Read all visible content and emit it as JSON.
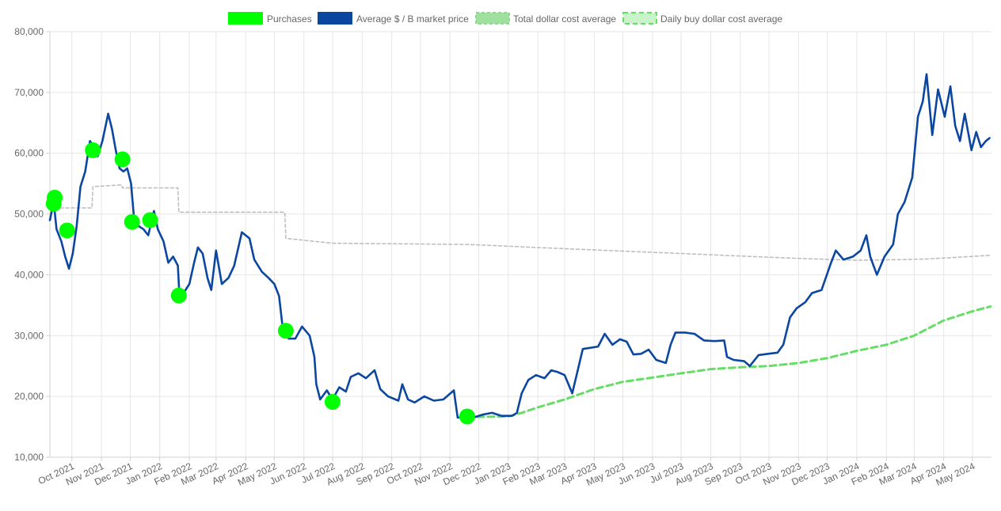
{
  "chart_data": {
    "type": "line",
    "x_axis_type": "date",
    "y_axis": {
      "ylim": [
        10000,
        80000
      ],
      "ticks": [
        10000,
        20000,
        30000,
        40000,
        50000,
        60000,
        70000,
        80000
      ],
      "tick_labels": [
        "10,000",
        "20,000",
        "30,000",
        "40,000",
        "50,000",
        "60,000",
        "70,000",
        "80,000"
      ]
    },
    "x_axis": {
      "xlim": [
        "2021-09-08",
        "2024-05-21"
      ],
      "ticks": [
        "2021-10-01",
        "2021-11-01",
        "2021-12-01",
        "2022-01-01",
        "2022-02-01",
        "2022-03-01",
        "2022-04-01",
        "2022-05-01",
        "2022-06-01",
        "2022-07-01",
        "2022-08-01",
        "2022-09-01",
        "2022-10-01",
        "2022-11-01",
        "2022-12-01",
        "2023-01-01",
        "2023-02-01",
        "2023-03-01",
        "2023-04-01",
        "2023-05-01",
        "2023-06-01",
        "2023-07-01",
        "2023-08-01",
        "2023-09-01",
        "2023-10-01",
        "2023-11-01",
        "2023-12-01",
        "2024-01-01",
        "2024-02-01",
        "2024-03-01",
        "2024-04-01",
        "2024-05-01"
      ],
      "tick_labels": [
        "Oct 2021",
        "Nov 2021",
        "Dec 2021",
        "Jan 2022",
        "Feb 2022",
        "Mar 2022",
        "Apr 2022",
        "May 2022",
        "Jun 2022",
        "Jul 2022",
        "Aug 2022",
        "Sep 2022",
        "Oct 2022",
        "Nov 2022",
        "Dec 2022",
        "Jan 2023",
        "Feb 2023",
        "Mar 2023",
        "Apr 2023",
        "May 2023",
        "Jun 2023",
        "Jul 2023",
        "Aug 2023",
        "Sep 2023",
        "Oct 2023",
        "Nov 2023",
        "Dec 2023",
        "Jan 2024",
        "Feb 2024",
        "Mar 2024",
        "Apr 2024",
        "May 2024"
      ]
    },
    "grid": true,
    "legend_position": "top-center",
    "series": [
      {
        "name": "Purchases",
        "kind": "points",
        "color": "#00ff00",
        "points": [
          {
            "x": "2021-09-13",
            "y": 52700
          },
          {
            "x": "2021-09-12",
            "y": 51700
          },
          {
            "x": "2021-09-26",
            "y": 47300
          },
          {
            "x": "2021-10-23",
            "y": 60500
          },
          {
            "x": "2021-11-23",
            "y": 59000
          },
          {
            "x": "2021-12-03",
            "y": 48700
          },
          {
            "x": "2021-12-22",
            "y": 49000
          },
          {
            "x": "2022-01-21",
            "y": 36600
          },
          {
            "x": "2022-05-13",
            "y": 30800
          },
          {
            "x": "2022-07-01",
            "y": 19100
          },
          {
            "x": "2022-11-19",
            "y": 16700
          }
        ]
      },
      {
        "name": "Average $ / B market price",
        "kind": "line",
        "color": "#0b47a1",
        "points": [
          {
            "x": "2021-09-08",
            "y": 49000
          },
          {
            "x": "2021-09-12",
            "y": 52000
          },
          {
            "x": "2021-09-15",
            "y": 47500
          },
          {
            "x": "2021-09-20",
            "y": 45500
          },
          {
            "x": "2021-09-24",
            "y": 43000
          },
          {
            "x": "2021-09-28",
            "y": 41000
          },
          {
            "x": "2021-10-02",
            "y": 43500
          },
          {
            "x": "2021-10-06",
            "y": 48000
          },
          {
            "x": "2021-10-10",
            "y": 54500
          },
          {
            "x": "2021-10-15",
            "y": 57000
          },
          {
            "x": "2021-10-20",
            "y": 62000
          },
          {
            "x": "2021-10-24",
            "y": 61000
          },
          {
            "x": "2021-10-28",
            "y": 59500
          },
          {
            "x": "2021-11-02",
            "y": 62000
          },
          {
            "x": "2021-11-08",
            "y": 66500
          },
          {
            "x": "2021-11-12",
            "y": 64000
          },
          {
            "x": "2021-11-16",
            "y": 60500
          },
          {
            "x": "2021-11-20",
            "y": 57500
          },
          {
            "x": "2021-11-24",
            "y": 57000
          },
          {
            "x": "2021-11-28",
            "y": 57500
          },
          {
            "x": "2021-12-02",
            "y": 55000
          },
          {
            "x": "2021-12-05",
            "y": 49500
          },
          {
            "x": "2021-12-10",
            "y": 48000
          },
          {
            "x": "2021-12-15",
            "y": 47500
          },
          {
            "x": "2021-12-20",
            "y": 46500
          },
          {
            "x": "2021-12-26",
            "y": 50500
          },
          {
            "x": "2021-12-30",
            "y": 47500
          },
          {
            "x": "2022-01-05",
            "y": 45500
          },
          {
            "x": "2022-01-10",
            "y": 42000
          },
          {
            "x": "2022-01-15",
            "y": 43000
          },
          {
            "x": "2022-01-20",
            "y": 41500
          },
          {
            "x": "2022-01-22",
            "y": 35500
          },
          {
            "x": "2022-01-26",
            "y": 37000
          },
          {
            "x": "2022-02-01",
            "y": 38500
          },
          {
            "x": "2022-02-06",
            "y": 42000
          },
          {
            "x": "2022-02-10",
            "y": 44500
          },
          {
            "x": "2022-02-15",
            "y": 43500
          },
          {
            "x": "2022-02-20",
            "y": 39500
          },
          {
            "x": "2022-02-24",
            "y": 37500
          },
          {
            "x": "2022-03-01",
            "y": 44000
          },
          {
            "x": "2022-03-07",
            "y": 38500
          },
          {
            "x": "2022-03-14",
            "y": 39500
          },
          {
            "x": "2022-03-20",
            "y": 41500
          },
          {
            "x": "2022-03-28",
            "y": 47000
          },
          {
            "x": "2022-04-05",
            "y": 46000
          },
          {
            "x": "2022-04-10",
            "y": 42500
          },
          {
            "x": "2022-04-18",
            "y": 40500
          },
          {
            "x": "2022-04-25",
            "y": 39500
          },
          {
            "x": "2022-05-01",
            "y": 38500
          },
          {
            "x": "2022-05-06",
            "y": 36500
          },
          {
            "x": "2022-05-10",
            "y": 31000
          },
          {
            "x": "2022-05-16",
            "y": 29500
          },
          {
            "x": "2022-05-23",
            "y": 29500
          },
          {
            "x": "2022-05-30",
            "y": 31500
          },
          {
            "x": "2022-06-07",
            "y": 30000
          },
          {
            "x": "2022-06-12",
            "y": 26500
          },
          {
            "x": "2022-06-14",
            "y": 22000
          },
          {
            "x": "2022-06-18",
            "y": 19500
          },
          {
            "x": "2022-06-25",
            "y": 21000
          },
          {
            "x": "2022-07-01",
            "y": 19500
          },
          {
            "x": "2022-07-08",
            "y": 21500
          },
          {
            "x": "2022-07-15",
            "y": 20800
          },
          {
            "x": "2022-07-20",
            "y": 23200
          },
          {
            "x": "2022-07-28",
            "y": 23800
          },
          {
            "x": "2022-08-05",
            "y": 23000
          },
          {
            "x": "2022-08-14",
            "y": 24300
          },
          {
            "x": "2022-08-20",
            "y": 21200
          },
          {
            "x": "2022-08-28",
            "y": 20000
          },
          {
            "x": "2022-09-08",
            "y": 19300
          },
          {
            "x": "2022-09-12",
            "y": 22000
          },
          {
            "x": "2022-09-18",
            "y": 19500
          },
          {
            "x": "2022-09-25",
            "y": 19000
          },
          {
            "x": "2022-10-05",
            "y": 20000
          },
          {
            "x": "2022-10-15",
            "y": 19300
          },
          {
            "x": "2022-10-25",
            "y": 19500
          },
          {
            "x": "2022-11-05",
            "y": 21000
          },
          {
            "x": "2022-11-09",
            "y": 16500
          },
          {
            "x": "2022-11-15",
            "y": 16600
          },
          {
            "x": "2022-11-25",
            "y": 16500
          },
          {
            "x": "2022-12-05",
            "y": 17000
          },
          {
            "x": "2022-12-15",
            "y": 17300
          },
          {
            "x": "2022-12-25",
            "y": 16800
          },
          {
            "x": "2023-01-05",
            "y": 16800
          },
          {
            "x": "2023-01-10",
            "y": 17300
          },
          {
            "x": "2023-01-15",
            "y": 20500
          },
          {
            "x": "2023-01-22",
            "y": 22700
          },
          {
            "x": "2023-01-30",
            "y": 23500
          },
          {
            "x": "2023-02-08",
            "y": 23000
          },
          {
            "x": "2023-02-15",
            "y": 24300
          },
          {
            "x": "2023-02-22",
            "y": 24000
          },
          {
            "x": "2023-03-01",
            "y": 23500
          },
          {
            "x": "2023-03-09",
            "y": 20500
          },
          {
            "x": "2023-03-15",
            "y": 24500
          },
          {
            "x": "2023-03-20",
            "y": 27800
          },
          {
            "x": "2023-03-28",
            "y": 28000
          },
          {
            "x": "2023-04-05",
            "y": 28200
          },
          {
            "x": "2023-04-12",
            "y": 30300
          },
          {
            "x": "2023-04-20",
            "y": 28500
          },
          {
            "x": "2023-04-28",
            "y": 29400
          },
          {
            "x": "2023-05-05",
            "y": 29000
          },
          {
            "x": "2023-05-12",
            "y": 26900
          },
          {
            "x": "2023-05-20",
            "y": 27000
          },
          {
            "x": "2023-05-28",
            "y": 27700
          },
          {
            "x": "2023-06-05",
            "y": 26000
          },
          {
            "x": "2023-06-15",
            "y": 25500
          },
          {
            "x": "2023-06-20",
            "y": 28500
          },
          {
            "x": "2023-06-25",
            "y": 30500
          },
          {
            "x": "2023-07-05",
            "y": 30500
          },
          {
            "x": "2023-07-15",
            "y": 30300
          },
          {
            "x": "2023-07-25",
            "y": 29200
          },
          {
            "x": "2023-08-05",
            "y": 29100
          },
          {
            "x": "2023-08-15",
            "y": 29200
          },
          {
            "x": "2023-08-18",
            "y": 26500
          },
          {
            "x": "2023-08-25",
            "y": 26000
          },
          {
            "x": "2023-09-05",
            "y": 25800
          },
          {
            "x": "2023-09-11",
            "y": 25000
          },
          {
            "x": "2023-09-20",
            "y": 26800
          },
          {
            "x": "2023-09-30",
            "y": 27000
          },
          {
            "x": "2023-10-10",
            "y": 27200
          },
          {
            "x": "2023-10-16",
            "y": 28500
          },
          {
            "x": "2023-10-23",
            "y": 33000
          },
          {
            "x": "2023-10-30",
            "y": 34500
          },
          {
            "x": "2023-11-08",
            "y": 35500
          },
          {
            "x": "2023-11-15",
            "y": 37000
          },
          {
            "x": "2023-11-25",
            "y": 37500
          },
          {
            "x": "2023-12-05",
            "y": 42000
          },
          {
            "x": "2023-12-10",
            "y": 44000
          },
          {
            "x": "2023-12-18",
            "y": 42500
          },
          {
            "x": "2023-12-28",
            "y": 43000
          },
          {
            "x": "2024-01-05",
            "y": 44000
          },
          {
            "x": "2024-01-11",
            "y": 46500
          },
          {
            "x": "2024-01-15",
            "y": 43000
          },
          {
            "x": "2024-01-22",
            "y": 40000
          },
          {
            "x": "2024-01-30",
            "y": 43000
          },
          {
            "x": "2024-02-08",
            "y": 45000
          },
          {
            "x": "2024-02-13",
            "y": 50000
          },
          {
            "x": "2024-02-20",
            "y": 52000
          },
          {
            "x": "2024-02-28",
            "y": 56000
          },
          {
            "x": "2024-03-05",
            "y": 66000
          },
          {
            "x": "2024-03-10",
            "y": 68500
          },
          {
            "x": "2024-03-14",
            "y": 73000
          },
          {
            "x": "2024-03-20",
            "y": 63000
          },
          {
            "x": "2024-03-26",
            "y": 70500
          },
          {
            "x": "2024-04-02",
            "y": 66000
          },
          {
            "x": "2024-04-08",
            "y": 71000
          },
          {
            "x": "2024-04-13",
            "y": 64500
          },
          {
            "x": "2024-04-18",
            "y": 62000
          },
          {
            "x": "2024-04-23",
            "y": 66500
          },
          {
            "x": "2024-04-30",
            "y": 60500
          },
          {
            "x": "2024-05-05",
            "y": 63500
          },
          {
            "x": "2024-05-10",
            "y": 61000
          },
          {
            "x": "2024-05-15",
            "y": 62000
          },
          {
            "x": "2024-05-19",
            "y": 62500
          }
        ]
      },
      {
        "name": "Total dollar cost average",
        "kind": "dashed-line",
        "color": "#bbbbbb",
        "legend_color": "#8fd88f",
        "points": [
          {
            "x": "2021-09-13",
            "y": 51000
          },
          {
            "x": "2021-10-22",
            "y": 51000
          },
          {
            "x": "2021-10-23",
            "y": 54500
          },
          {
            "x": "2021-11-22",
            "y": 54800
          },
          {
            "x": "2021-11-23",
            "y": 54300
          },
          {
            "x": "2022-01-20",
            "y": 54300
          },
          {
            "x": "2022-01-21",
            "y": 50300
          },
          {
            "x": "2022-05-12",
            "y": 50300
          },
          {
            "x": "2022-05-13",
            "y": 46000
          },
          {
            "x": "2022-07-01",
            "y": 45200
          },
          {
            "x": "2022-11-19",
            "y": 45000
          },
          {
            "x": "2023-03-01",
            "y": 44300
          },
          {
            "x": "2023-07-01",
            "y": 43500
          },
          {
            "x": "2023-11-01",
            "y": 42700
          },
          {
            "x": "2024-01-01",
            "y": 42400
          },
          {
            "x": "2024-02-15",
            "y": 42500
          },
          {
            "x": "2024-03-15",
            "y": 42600
          },
          {
            "x": "2024-05-20",
            "y": 43200
          }
        ]
      },
      {
        "name": "Daily buy dollar cost average",
        "kind": "dashed-line",
        "color": "#66dd66",
        "points": [
          {
            "x": "2022-11-19",
            "y": 16600
          },
          {
            "x": "2023-01-01",
            "y": 16700
          },
          {
            "x": "2023-01-15",
            "y": 17300
          },
          {
            "x": "2023-02-01",
            "y": 18200
          },
          {
            "x": "2023-03-01",
            "y": 19500
          },
          {
            "x": "2023-04-01",
            "y": 21200
          },
          {
            "x": "2023-05-01",
            "y": 22400
          },
          {
            "x": "2023-06-01",
            "y": 23100
          },
          {
            "x": "2023-07-01",
            "y": 23800
          },
          {
            "x": "2023-08-01",
            "y": 24500
          },
          {
            "x": "2023-09-01",
            "y": 24800
          },
          {
            "x": "2023-10-01",
            "y": 25000
          },
          {
            "x": "2023-11-01",
            "y": 25500
          },
          {
            "x": "2023-12-01",
            "y": 26300
          },
          {
            "x": "2024-01-01",
            "y": 27500
          },
          {
            "x": "2024-02-01",
            "y": 28500
          },
          {
            "x": "2024-03-01",
            "y": 30000
          },
          {
            "x": "2024-04-01",
            "y": 32500
          },
          {
            "x": "2024-05-01",
            "y": 34000
          },
          {
            "x": "2024-05-20",
            "y": 34800
          }
        ]
      }
    ]
  }
}
